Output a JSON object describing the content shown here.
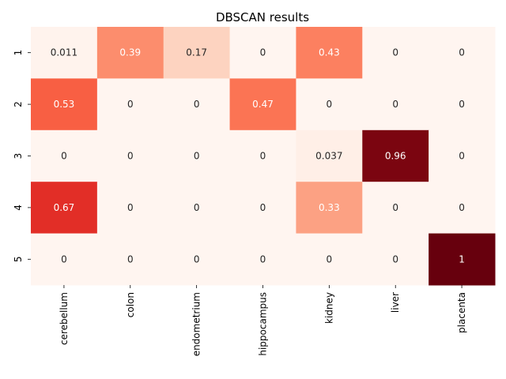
{
  "chart_data": {
    "type": "heatmap",
    "title": "DBSCAN results",
    "xlabel": "",
    "ylabel": "",
    "x_categories": [
      "cerebellum",
      "colon",
      "endometrium",
      "hippocampus",
      "kidney",
      "liver",
      "placenta"
    ],
    "y_categories": [
      "1",
      "2",
      "3",
      "4",
      "5"
    ],
    "values": [
      [
        0.011,
        0.39,
        0.17,
        0,
        0.43,
        0,
        0
      ],
      [
        0.53,
        0,
        0,
        0.47,
        0,
        0,
        0
      ],
      [
        0,
        0,
        0,
        0,
        0.037,
        0.96,
        0
      ],
      [
        0.67,
        0,
        0,
        0,
        0.33,
        0,
        0
      ],
      [
        0,
        0,
        0,
        0,
        0,
        0,
        1
      ]
    ],
    "labels": [
      [
        "0.011",
        "0.39",
        "0.17",
        "0",
        "0.43",
        "0",
        "0"
      ],
      [
        "0.53",
        "0",
        "0",
        "0.47",
        "0",
        "0",
        "0"
      ],
      [
        "0",
        "0",
        "0",
        "0",
        "0.037",
        "0.96",
        "0"
      ],
      [
        "0.67",
        "0",
        "0",
        "0",
        "0.33",
        "0",
        "0"
      ],
      [
        "0",
        "0",
        "0",
        "0",
        "0",
        "0",
        "1"
      ]
    ],
    "value_range": [
      0,
      1
    ],
    "colormap": "Reds",
    "colorbar": false,
    "grid": false
  }
}
